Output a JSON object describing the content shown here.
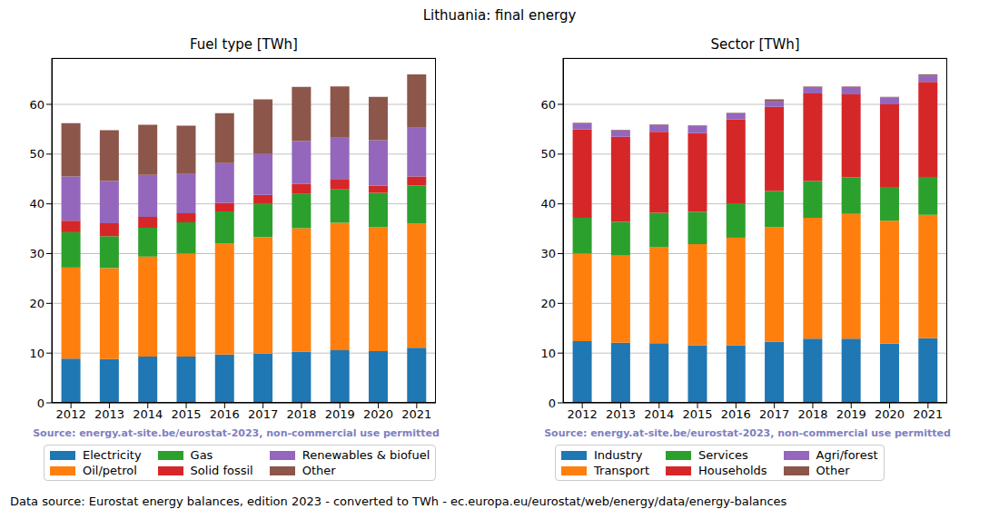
{
  "title": "Lithuania: final energy",
  "footer": "Data source: Eurostat energy balances, edition 2023 - converted to TWh - ec.europa.eu/eurostat/web/energy/data/energy-balances",
  "chart_data": [
    {
      "type": "bar",
      "title": "Fuel type [TWh]",
      "annotation": "Source: energy.at-site.be/eurostat-2023, non-commercial use permitted",
      "stacked": true,
      "grid": true,
      "categories": [
        "2012",
        "2013",
        "2014",
        "2015",
        "2016",
        "2017",
        "2018",
        "2019",
        "2020",
        "2021"
      ],
      "ylim": [
        0,
        69.3
      ],
      "yticks": [
        0,
        10,
        20,
        30,
        40,
        50,
        60
      ],
      "series": [
        {
          "name": "Electricity",
          "color": "#1f77b4",
          "values": [
            8.9,
            8.8,
            9.3,
            9.3,
            9.7,
            9.9,
            10.3,
            10.6,
            10.4,
            11.1
          ]
        },
        {
          "name": "Oil/petrol",
          "color": "#ff7f0e",
          "values": [
            18.3,
            18.3,
            20.1,
            20.7,
            22.3,
            23.4,
            24.8,
            25.6,
            24.9,
            24.9
          ]
        },
        {
          "name": "Gas",
          "color": "#2ca02c",
          "values": [
            7.1,
            6.4,
            5.8,
            6.3,
            6.5,
            6.7,
            6.9,
            6.7,
            6.9,
            7.7
          ]
        },
        {
          "name": "Solid fossil",
          "color": "#d62728",
          "values": [
            2.3,
            2.6,
            2.2,
            1.8,
            1.7,
            1.8,
            2.0,
            2.1,
            1.5,
            1.8
          ]
        },
        {
          "name": "Renewables & biofuel",
          "color": "#9467bd",
          "values": [
            8.9,
            8.5,
            8.4,
            7.9,
            8.0,
            8.2,
            8.6,
            8.3,
            9.1,
            9.8
          ]
        },
        {
          "name": "Other",
          "color": "#8c564b",
          "values": [
            10.7,
            10.2,
            10.1,
            9.7,
            10.0,
            11.0,
            10.9,
            10.3,
            8.7,
            10.7
          ]
        }
      ]
    },
    {
      "type": "bar",
      "title": "Sector [TWh]",
      "annotation": "Source: energy.at-site.be/eurostat-2023, non-commercial use permitted",
      "stacked": true,
      "grid": true,
      "categories": [
        "2012",
        "2013",
        "2014",
        "2015",
        "2016",
        "2017",
        "2018",
        "2019",
        "2020",
        "2021"
      ],
      "ylim": [
        0,
        69.3
      ],
      "yticks": [
        0,
        10,
        20,
        30,
        40,
        50,
        60
      ],
      "series": [
        {
          "name": "Industry",
          "color": "#1f77b4",
          "values": [
            12.4,
            12.1,
            12.0,
            11.6,
            11.6,
            12.3,
            12.9,
            12.9,
            11.9,
            13.0
          ]
        },
        {
          "name": "Transport",
          "color": "#ff7f0e",
          "values": [
            17.6,
            17.5,
            19.3,
            20.3,
            21.6,
            23.0,
            24.3,
            25.1,
            24.7,
            24.8
          ]
        },
        {
          "name": "Services",
          "color": "#2ca02c",
          "values": [
            7.2,
            6.8,
            6.9,
            6.5,
            6.9,
            7.3,
            7.4,
            7.3,
            6.8,
            7.6
          ]
        },
        {
          "name": "Households",
          "color": "#d62728",
          "values": [
            17.8,
            17.1,
            16.3,
            15.8,
            16.9,
            16.9,
            17.6,
            16.7,
            16.6,
            19.1
          ]
        },
        {
          "name": "Agri/forest",
          "color": "#9467bd",
          "values": [
            1.2,
            1.3,
            1.4,
            1.5,
            1.2,
            1.1,
            1.3,
            1.5,
            1.4,
            1.3
          ]
        },
        {
          "name": "Other",
          "color": "#8c564b",
          "values": [
            0.1,
            0.1,
            0.1,
            0.1,
            0.1,
            0.4,
            0.1,
            0.1,
            0.1,
            0.2
          ]
        }
      ]
    }
  ]
}
